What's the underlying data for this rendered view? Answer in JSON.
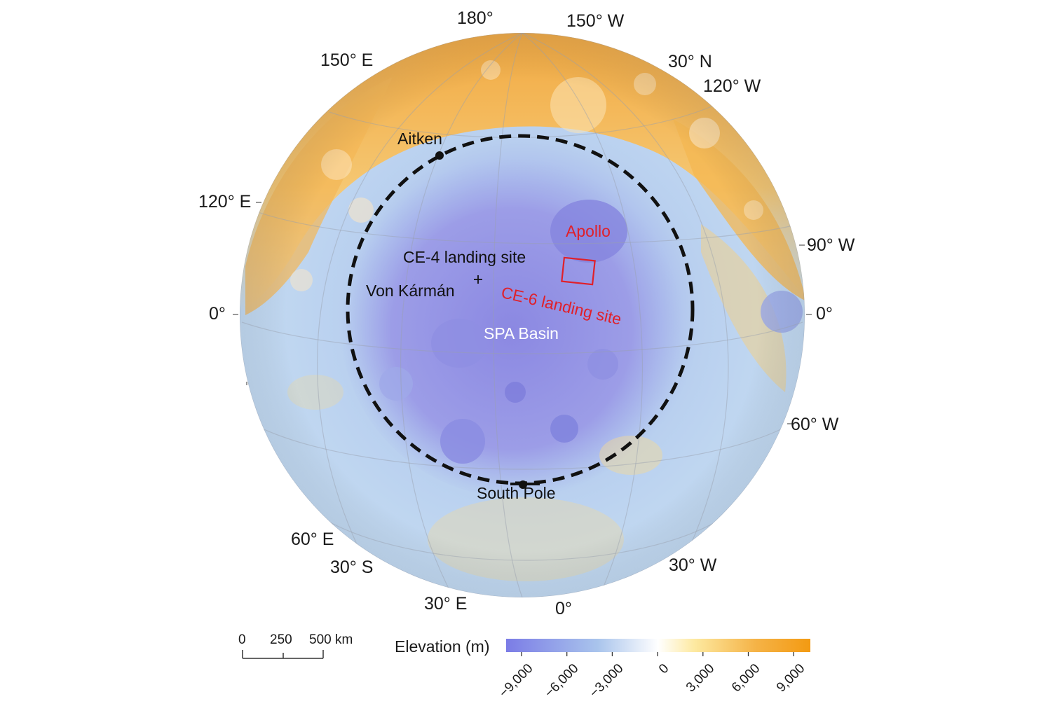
{
  "graticule_labels": {
    "lon_180": "180°",
    "lon_150w": "150° W",
    "lon_150e": "150° E",
    "lat_30n": "30° N",
    "lon_120w": "120° W",
    "lon_120e": "120° E",
    "lon_90w": "90° W",
    "left_0": "0°",
    "right_0": "0°",
    "lon_60w": "60° W",
    "lon_60e": "60° E",
    "lat_30s": "30° S",
    "lon_30w": "30° W",
    "lon_30e": "30° E",
    "bottom_0": "0°"
  },
  "features": {
    "aitken": "Aitken",
    "apollo": "Apollo",
    "ce4_site": "CE-4 landing site",
    "von_karman": "Von Kármán",
    "ce6_site": "CE-6 landing site",
    "spa_basin": "SPA Basin",
    "south_pole": "South Pole"
  },
  "scale_bar": {
    "labels": [
      "0",
      "250",
      "500 km"
    ]
  },
  "legend": {
    "title": "Elevation (m)",
    "ticks": [
      "−9,000",
      "−6,000",
      "−3,000",
      "0",
      "3,000",
      "6,000",
      "9,000"
    ],
    "colors": {
      "deep": "#7b7ce6",
      "low": "#a9c4ec",
      "zero": "#ffffff",
      "mid": "#fde9a0",
      "high": "#f5b347",
      "max": "#f39a12"
    }
  },
  "marker_colors": {
    "basin_outline": "#111111",
    "ce6_box": "#e0202a"
  }
}
